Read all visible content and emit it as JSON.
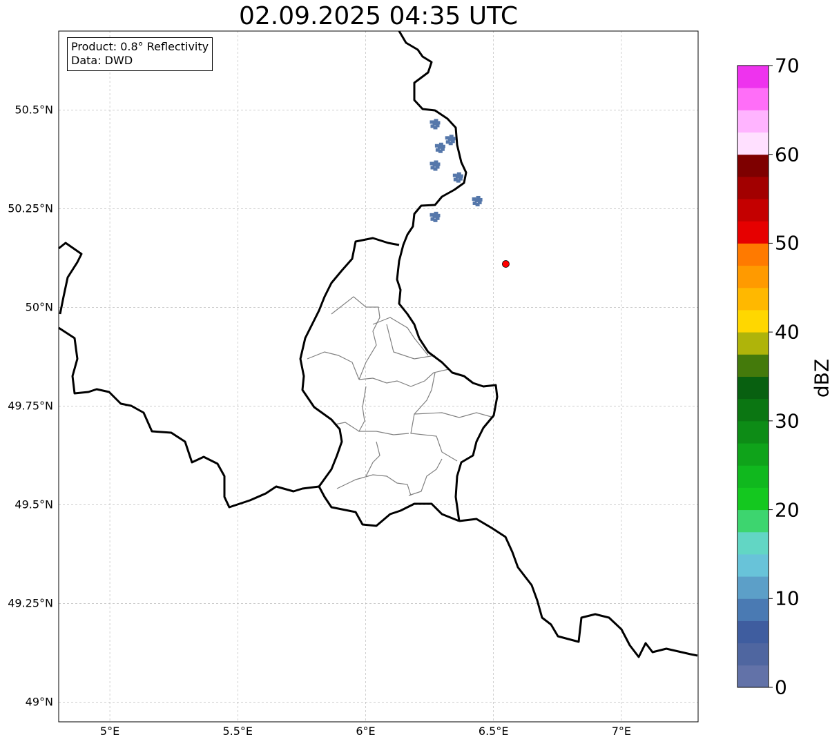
{
  "title": "02.09.2025 04:35 UTC",
  "info": {
    "product": "Product: 0.8° Reflectivity",
    "data": "Data: DWD"
  },
  "axes": {
    "lon_range": [
      4.8,
      7.3
    ],
    "lat_range": [
      48.95,
      50.7
    ],
    "lat_ticks": [
      {
        "value": 50.5,
        "label": "50.5°N"
      },
      {
        "value": 50.25,
        "label": "50.25°N"
      },
      {
        "value": 50.0,
        "label": "50°N"
      },
      {
        "value": 49.75,
        "label": "49.75°N"
      },
      {
        "value": 49.5,
        "label": "49.5°N"
      },
      {
        "value": 49.25,
        "label": "49.25°N"
      },
      {
        "value": 49.0,
        "label": "49°N"
      }
    ],
    "lon_ticks": [
      {
        "value": 5.0,
        "label": "5°E"
      },
      {
        "value": 5.5,
        "label": "5.5°E"
      },
      {
        "value": 6.0,
        "label": "6°E"
      },
      {
        "value": 6.5,
        "label": "6.5°E"
      },
      {
        "value": 7.0,
        "label": "7°E"
      }
    ],
    "grid": true
  },
  "radar_site": {
    "lon": 6.548,
    "lat": 50.11,
    "color": "#ff0000"
  },
  "colorbar": {
    "label": "dBZ",
    "min": 0,
    "max": 70,
    "tick_labels": [
      {
        "value": 0,
        "label": "0"
      },
      {
        "value": 10,
        "label": "10"
      },
      {
        "value": 20,
        "label": "20"
      },
      {
        "value": 30,
        "label": "30"
      },
      {
        "value": 40,
        "label": "40"
      },
      {
        "value": 50,
        "label": "50"
      },
      {
        "value": 60,
        "label": "60"
      },
      {
        "value": 70,
        "label": "70"
      }
    ],
    "colors": [
      "#6272a8",
      "#4f66a0",
      "#3f5d9f",
      "#4a7ab3",
      "#5c9fc8",
      "#68c3d9",
      "#62d6c4",
      "#3dd56f",
      "#14c81f",
      "#10b81e",
      "#0fa31a",
      "#0d8c16",
      "#0b7612",
      "#086010",
      "#447a0b",
      "#afb40a",
      "#ffd700",
      "#ffb800",
      "#ff9a00",
      "#ff7a00",
      "#e60000",
      "#c40000",
      "#a20000",
      "#7e0000",
      "#ffe0ff",
      "#ffb4ff",
      "#ff6ef8",
      "#ee33ee"
    ]
  },
  "echo_color": "#5577aa",
  "echo_cells": [
    {
      "lon": 6.27,
      "lat": 50.465
    },
    {
      "lon": 6.33,
      "lat": 50.425
    },
    {
      "lon": 6.29,
      "lat": 50.405
    },
    {
      "lon": 6.27,
      "lat": 50.36
    },
    {
      "lon": 6.36,
      "lat": 50.33
    },
    {
      "lon": 6.435,
      "lat": 50.27
    },
    {
      "lon": 6.27,
      "lat": 50.23
    }
  ]
}
